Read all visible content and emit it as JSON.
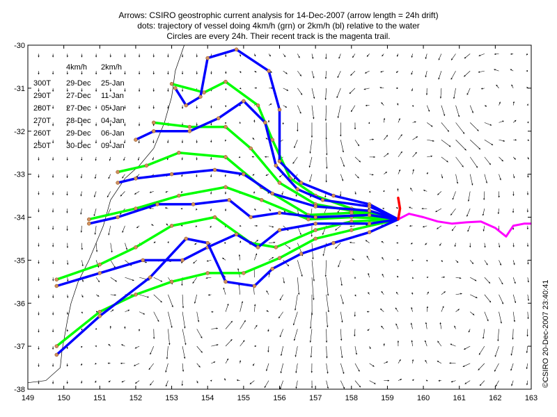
{
  "title_lines": [
    "Arrows: CSIRO geostrophic current analysis for 14-Dec-2007 (arrow length = 24h drift)",
    "dots: trajectory of vessel doing 4km/h (grn) or 2km/h (bl) relative to the water",
    "Circles are every 24h. Their recent track is the magenta trail."
  ],
  "copyright": "©CSIRO 20-Dec-2007 23:40:41",
  "colors": {
    "green": "#00ff00",
    "blue": "#0000ff",
    "magenta": "#ff00ff",
    "red": "#ff0000",
    "arrows": "#000000",
    "coast": "#000000"
  },
  "legend": {
    "header_4": "4km/h",
    "header_2": "2km/h",
    "rows": [
      {
        "heading": "300T",
        "t4": "29-Dec",
        "t2": "25-Jan"
      },
      {
        "heading": "290T",
        "t4": "27-Dec",
        "t2": "11-Jan"
      },
      {
        "heading": "280T",
        "t4": "27-Dec",
        "t2": "05-Jan"
      },
      {
        "heading": "270T",
        "t4": "28-Dec",
        "t2": "04-Jan"
      },
      {
        "heading": "260T",
        "t4": "29-Dec",
        "t2": "06-Jan"
      },
      {
        "heading": "250T",
        "t4": "30-Dec",
        "t2": "09-Jan"
      }
    ]
  },
  "chart_data": {
    "type": "map",
    "x_ticks": [
      "149",
      "150",
      "151",
      "152",
      "153",
      "154",
      "155",
      "156",
      "157",
      "158",
      "159",
      "160",
      "161",
      "162",
      "163"
    ],
    "y_ticks": [
      "-30",
      "-31",
      "-32",
      "-33",
      "-34",
      "-35",
      "-36",
      "-37",
      "-38"
    ],
    "xlim": [
      149,
      163
    ],
    "ylim": [
      -38,
      -30
    ],
    "start_point": [
      159.3,
      -34.05
    ],
    "magenta_trail": [
      [
        159.3,
        -34.05
      ],
      [
        159.6,
        -33.92
      ],
      [
        160.0,
        -34.0
      ],
      [
        160.4,
        -34.1
      ],
      [
        160.8,
        -34.15
      ],
      [
        161.2,
        -34.12
      ],
      [
        161.6,
        -34.1
      ],
      [
        162.0,
        -34.25
      ],
      [
        162.3,
        -34.45
      ],
      [
        162.5,
        -34.2
      ],
      [
        162.8,
        -34.15
      ],
      [
        163.0,
        -34.15
      ]
    ],
    "red_trail": [
      [
        159.3,
        -34.05
      ],
      [
        159.35,
        -33.8
      ],
      [
        159.3,
        -33.55
      ]
    ],
    "green_tracks": [
      [
        [
          159.3,
          -34.05
        ],
        [
          158.0,
          -33.8
        ],
        [
          157.0,
          -33.5
        ],
        [
          156.3,
          -33.1
        ],
        [
          155.8,
          -32.2
        ],
        [
          155.4,
          -31.4
        ],
        [
          154.5,
          -30.85
        ],
        [
          153.9,
          -31.1
        ],
        [
          153.0,
          -30.9
        ]
      ],
      [
        [
          159.3,
          -34.05
        ],
        [
          158.0,
          -33.85
        ],
        [
          157.0,
          -33.7
        ],
        [
          156.0,
          -33.2
        ],
        [
          155.2,
          -32.4
        ],
        [
          154.5,
          -31.9
        ],
        [
          153.5,
          -31.9
        ],
        [
          152.5,
          -31.8
        ]
      ],
      [
        [
          159.3,
          -34.05
        ],
        [
          158.0,
          -33.9
        ],
        [
          156.8,
          -33.95
        ],
        [
          155.5,
          -33.3
        ],
        [
          154.5,
          -32.6
        ],
        [
          153.2,
          -32.5
        ],
        [
          152.3,
          -32.8
        ],
        [
          151.5,
          -32.95
        ]
      ],
      [
        [
          159.3,
          -34.05
        ],
        [
          158.0,
          -34.0
        ],
        [
          156.8,
          -34.05
        ],
        [
          155.5,
          -33.6
        ],
        [
          154.5,
          -33.3
        ],
        [
          153.2,
          -33.5
        ],
        [
          152.0,
          -33.8
        ],
        [
          150.7,
          -34.05
        ]
      ],
      [
        [
          159.3,
          -34.05
        ],
        [
          158.0,
          -34.1
        ],
        [
          157.0,
          -34.3
        ],
        [
          155.9,
          -34.7
        ],
        [
          155.2,
          -34.6
        ],
        [
          154.2,
          -34.0
        ],
        [
          153.0,
          -34.2
        ],
        [
          152.0,
          -34.7
        ],
        [
          151.0,
          -35.1
        ],
        [
          149.8,
          -35.45
        ]
      ],
      [
        [
          159.3,
          -34.05
        ],
        [
          158.0,
          -34.3
        ],
        [
          157.0,
          -34.5
        ],
        [
          156.0,
          -34.95
        ],
        [
          155.0,
          -35.3
        ],
        [
          154.0,
          -35.3
        ],
        [
          153.0,
          -35.5
        ],
        [
          152.0,
          -35.8
        ],
        [
          151.0,
          -36.2
        ],
        [
          149.8,
          -37.0
        ]
      ]
    ],
    "blue_tracks": [
      [
        [
          159.3,
          -34.05
        ],
        [
          158.5,
          -33.7
        ],
        [
          157.5,
          -33.5
        ],
        [
          156.6,
          -33.2
        ],
        [
          156.0,
          -32.7
        ],
        [
          156.0,
          -31.5
        ],
        [
          155.7,
          -30.6
        ],
        [
          154.8,
          -30.1
        ],
        [
          154.0,
          -30.3
        ],
        [
          153.8,
          -31.2
        ],
        [
          153.4,
          -31.4
        ],
        [
          153.1,
          -31.0
        ]
      ],
      [
        [
          159.3,
          -34.05
        ],
        [
          158.5,
          -33.75
        ],
        [
          157.2,
          -33.6
        ],
        [
          156.5,
          -33.35
        ],
        [
          155.9,
          -32.8
        ],
        [
          155.6,
          -31.8
        ],
        [
          155.0,
          -31.3
        ],
        [
          154.3,
          -31.7
        ],
        [
          153.5,
          -32.0
        ],
        [
          152.5,
          -32.0
        ],
        [
          152.0,
          -32.2
        ]
      ],
      [
        [
          159.3,
          -34.05
        ],
        [
          158.5,
          -33.85
        ],
        [
          157.0,
          -33.75
        ],
        [
          155.8,
          -33.45
        ],
        [
          155.0,
          -33.0
        ],
        [
          154.2,
          -32.9
        ],
        [
          153.0,
          -33.0
        ],
        [
          152.0,
          -33.1
        ],
        [
          151.5,
          -33.2
        ]
      ],
      [
        [
          159.3,
          -34.05
        ],
        [
          158.5,
          -33.95
        ],
        [
          157.0,
          -34.0
        ],
        [
          156.0,
          -33.9
        ],
        [
          155.2,
          -34.0
        ],
        [
          154.6,
          -33.6
        ],
        [
          153.6,
          -33.7
        ],
        [
          152.6,
          -33.7
        ],
        [
          151.5,
          -34.0
        ],
        [
          150.7,
          -34.15
        ]
      ],
      [
        [
          159.3,
          -34.05
        ],
        [
          158.5,
          -34.15
        ],
        [
          157.0,
          -34.15
        ],
        [
          156.0,
          -34.3
        ],
        [
          155.4,
          -34.7
        ],
        [
          154.8,
          -34.4
        ],
        [
          154.0,
          -34.7
        ],
        [
          153.3,
          -35.0
        ],
        [
          152.2,
          -35.0
        ],
        [
          151.0,
          -35.3
        ],
        [
          149.8,
          -35.6
        ]
      ],
      [
        [
          159.3,
          -34.05
        ],
        [
          158.5,
          -34.35
        ],
        [
          157.5,
          -34.6
        ],
        [
          156.6,
          -34.85
        ],
        [
          155.8,
          -35.2
        ],
        [
          155.3,
          -35.6
        ],
        [
          154.5,
          -35.5
        ],
        [
          154.0,
          -34.6
        ],
        [
          153.4,
          -34.5
        ],
        [
          152.4,
          -35.4
        ],
        [
          151.0,
          -36.3
        ],
        [
          149.8,
          -37.2
        ]
      ]
    ]
  }
}
